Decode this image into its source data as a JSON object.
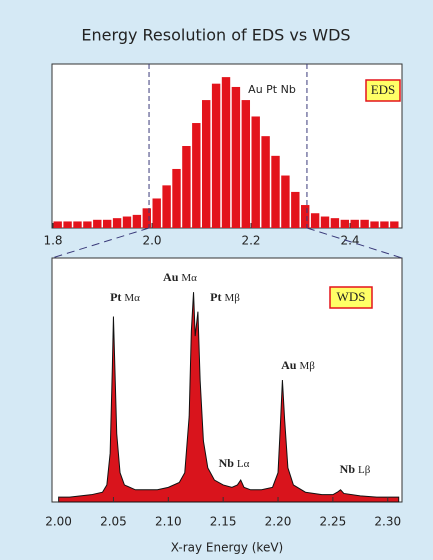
{
  "chart_data": [
    {
      "type": "histogram",
      "title": "Energy Resolution of EDS vs WDS",
      "box_label": "EDS",
      "annotation": "Au Pt Nb",
      "color": "#e3141c",
      "bins": [
        1.8,
        1.82,
        1.84,
        1.86,
        1.88,
        1.9,
        1.92,
        1.94,
        1.96,
        1.98,
        2.0,
        2.02,
        2.04,
        2.06,
        2.08,
        2.1,
        2.12,
        2.14,
        2.16,
        2.18,
        2.2,
        2.22,
        2.24,
        2.26,
        2.28,
        2.3,
        2.32,
        2.34,
        2.36,
        2.38,
        2.4,
        2.42,
        2.44,
        2.46,
        2.48,
        2.5
      ],
      "counts": [
        4,
        4,
        4,
        4,
        5,
        5,
        6,
        7,
        8,
        12,
        18,
        26,
        36,
        50,
        64,
        78,
        88,
        92,
        86,
        78,
        68,
        56,
        44,
        32,
        22,
        14,
        9,
        7,
        6,
        5,
        5,
        5,
        4,
        4,
        4
      ],
      "xlim": [
        1.798,
        2.505
      ],
      "ylim": [
        0,
        100
      ],
      "xticks": [
        1.8,
        {
          "value": 2.0,
          "label": "2.0"
        },
        2.2,
        2.4
      ]
    },
    {
      "type": "area",
      "box_label": "WDS",
      "xlabel": "X-ray Energy (keV)",
      "color": "#d9141c",
      "x": [
        2.0,
        2.01,
        2.02,
        2.03,
        2.04,
        2.044,
        2.047,
        2.049,
        2.05,
        2.051,
        2.053,
        2.056,
        2.06,
        2.07,
        2.08,
        2.09,
        2.1,
        2.11,
        2.115,
        2.119,
        2.121,
        2.123,
        2.1245,
        2.126,
        2.127,
        2.129,
        2.132,
        2.136,
        2.142,
        2.15,
        2.158,
        2.163,
        2.166,
        2.169,
        2.175,
        2.185,
        2.195,
        2.2,
        2.202,
        2.204,
        2.206,
        2.209,
        2.214,
        2.225,
        2.24,
        2.25,
        2.254,
        2.257,
        2.26,
        2.275,
        2.29,
        2.31
      ],
      "values": [
        2,
        2,
        2.5,
        3,
        4,
        7,
        20,
        55,
        76,
        60,
        28,
        12,
        7,
        5,
        5,
        5,
        6,
        8,
        12,
        35,
        70,
        86,
        68,
        74,
        78,
        50,
        25,
        14,
        9,
        7,
        6,
        7,
        9,
        6,
        5,
        5,
        6,
        12,
        30,
        50,
        34,
        14,
        7,
        4,
        3,
        3,
        4,
        5,
        3.5,
        2.5,
        2,
        2
      ],
      "xlim": [
        1.994,
        2.313
      ],
      "ylim": [
        0,
        100
      ],
      "xticks": [
        {
          "value": 2.0,
          "label": "2.00"
        },
        2.05,
        {
          "value": 2.1,
          "label": "2.10"
        },
        2.15,
        {
          "value": 2.2,
          "label": "2.20"
        },
        2.25,
        {
          "value": 2.3,
          "label": "2.30"
        }
      ],
      "annotations": [
        {
          "element": "Pt",
          "line": "Mα"
        },
        {
          "element": "Au",
          "line": "Mα"
        },
        {
          "element": "Pt",
          "line": "Mβ"
        },
        {
          "element": "Nb",
          "line": "Lα"
        },
        {
          "element": "Au",
          "line": "Mβ"
        },
        {
          "element": "Nb",
          "line": "Lβ"
        }
      ]
    }
  ]
}
